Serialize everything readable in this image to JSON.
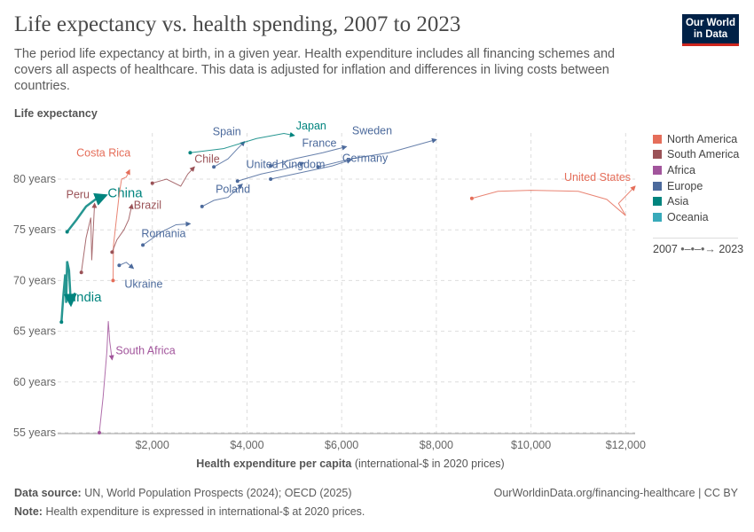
{
  "header": {
    "title": "Life expectancy vs. health spending, 2007 to 2023",
    "subtitle": "The period life expectancy at birth, in a given year. Health expenditure includes all financing schemes and covers all aspects of healthcare. This data is adjusted for inflation and differences in living costs between countries.",
    "logo": "Our World in Data"
  },
  "footer": {
    "source_label": "Data source:",
    "source": "UN, World Population Prospects (2024); OECD (2025)",
    "note_label": "Note:",
    "note": "Health expenditure is expressed in international-$ at 2020 prices.",
    "url": "OurWorldinData.org/financing-healthcare | CC BY"
  },
  "chart_data": {
    "type": "scatter",
    "connected": true,
    "xlabel_bold": "Health expenditure per capita",
    "xlabel_rest": "(international-$ in 2020 prices)",
    "ylabel": "Life expectancy",
    "xlim": [
      0,
      12200
    ],
    "ylim": [
      54.5,
      85
    ],
    "xticks": [
      2000,
      4000,
      6000,
      8000,
      10000,
      12000
    ],
    "xtick_labels": [
      "$2,000",
      "$4,000",
      "$6,000",
      "$8,000",
      "$10,000",
      "$12,000"
    ],
    "yticks": [
      55,
      60,
      65,
      70,
      75,
      80
    ],
    "ytick_labels": [
      "55 years",
      "60 years",
      "65 years",
      "70 years",
      "75 years",
      "80 years"
    ],
    "grid": true,
    "legend_position": "right",
    "regions": [
      {
        "name": "North America",
        "color": "#e56e5a"
      },
      {
        "name": "South America",
        "color": "#9a5257"
      },
      {
        "name": "Africa",
        "color": "#a2559c"
      },
      {
        "name": "Europe",
        "color": "#4c6a9c"
      },
      {
        "name": "Asia",
        "color": "#00847e"
      },
      {
        "name": "Oceania",
        "color": "#38aaba"
      }
    ],
    "time_legend": {
      "start": "2007",
      "end": "2023"
    },
    "series": [
      {
        "name": "United States",
        "region": "North America",
        "points": [
          [
            8750,
            78.1
          ],
          [
            9300,
            78.8
          ],
          [
            10000,
            78.9
          ],
          [
            11000,
            78.8
          ],
          [
            11600,
            78.0
          ],
          [
            12000,
            76.4
          ],
          [
            11850,
            77.6
          ],
          [
            12200,
            79.3
          ]
        ]
      },
      {
        "name": "China",
        "region": "Asia",
        "points": [
          [
            200,
            74.8
          ],
          [
            400,
            76.0
          ],
          [
            600,
            77.3
          ],
          [
            800,
            78.0
          ],
          [
            1020,
            78.4
          ]
        ]
      },
      {
        "name": "India",
        "region": "Asia",
        "points": [
          [
            80,
            65.9
          ],
          [
            120,
            68.5
          ],
          [
            160,
            70.6
          ],
          [
            180,
            67.8
          ],
          [
            200,
            71.9
          ],
          [
            240,
            71.0
          ],
          [
            280,
            67.6
          ]
        ]
      },
      {
        "name": "South Africa",
        "region": "Africa",
        "points": [
          [
            880,
            55.0
          ],
          [
            960,
            58.5
          ],
          [
            1040,
            63.0
          ],
          [
            1070,
            66.0
          ],
          [
            1100,
            64.0
          ],
          [
            1150,
            62.2
          ]
        ]
      },
      {
        "name": "Costa Rica",
        "region": "North America",
        "points": [
          [
            1170,
            70.0
          ],
          [
            1180,
            73.5
          ],
          [
            1300,
            78.5
          ],
          [
            1350,
            80.0
          ],
          [
            1450,
            80.2
          ],
          [
            1520,
            80.9
          ]
        ]
      },
      {
        "name": "Peru",
        "region": "South America",
        "points": [
          [
            500,
            70.8
          ],
          [
            600,
            74.2
          ],
          [
            700,
            76.2
          ],
          [
            720,
            72.0
          ],
          [
            780,
            77.6
          ]
        ]
      },
      {
        "name": "Brazil",
        "region": "South America",
        "points": [
          [
            1150,
            72.8
          ],
          [
            1250,
            74.0
          ],
          [
            1400,
            75.0
          ],
          [
            1500,
            76.0
          ],
          [
            1570,
            77.5
          ]
        ]
      },
      {
        "name": "Chile",
        "region": "South America",
        "points": [
          [
            2000,
            79.6
          ],
          [
            2300,
            80.0
          ],
          [
            2600,
            79.3
          ],
          [
            2750,
            80.5
          ],
          [
            2890,
            81.2
          ]
        ]
      },
      {
        "name": "Poland",
        "region": "Europe",
        "points": [
          [
            3050,
            77.3
          ],
          [
            3300,
            77.9
          ],
          [
            3600,
            78.2
          ],
          [
            3900,
            79.5
          ]
        ]
      },
      {
        "name": "Romania",
        "region": "Europe",
        "points": [
          [
            1800,
            73.5
          ],
          [
            2200,
            74.8
          ],
          [
            2500,
            75.5
          ],
          [
            2800,
            75.6
          ]
        ]
      },
      {
        "name": "Ukraine",
        "region": "Europe",
        "points": [
          [
            1300,
            71.5
          ],
          [
            1450,
            71.8
          ],
          [
            1600,
            71.2
          ]
        ]
      },
      {
        "name": "Spain",
        "region": "Europe",
        "points": [
          [
            3300,
            81.2
          ],
          [
            3600,
            82.0
          ],
          [
            3800,
            83.0
          ],
          [
            3950,
            83.7
          ]
        ]
      },
      {
        "name": "Japan",
        "region": "Asia",
        "points": [
          [
            2800,
            82.6
          ],
          [
            3500,
            83.0
          ],
          [
            4200,
            84.0
          ],
          [
            4780,
            84.5
          ],
          [
            5000,
            84.3
          ]
        ]
      },
      {
        "name": "France",
        "region": "Europe",
        "points": [
          [
            4500,
            81.3
          ],
          [
            5000,
            82.0
          ],
          [
            5600,
            82.6
          ],
          [
            6100,
            83.2
          ]
        ]
      },
      {
        "name": "Sweden",
        "region": "Europe",
        "points": [
          [
            5500,
            81.2
          ],
          [
            6200,
            82.0
          ],
          [
            7000,
            82.6
          ],
          [
            8000,
            83.9
          ]
        ]
      },
      {
        "name": "Germany",
        "region": "Europe",
        "points": [
          [
            4500,
            80.0
          ],
          [
            5200,
            80.7
          ],
          [
            5800,
            81.3
          ],
          [
            6200,
            81.9
          ]
        ]
      },
      {
        "name": "United Kingdom",
        "region": "Europe",
        "points": [
          [
            3800,
            79.8
          ],
          [
            4300,
            80.5
          ],
          [
            4800,
            81.0
          ],
          [
            5200,
            81.6
          ]
        ]
      }
    ]
  }
}
